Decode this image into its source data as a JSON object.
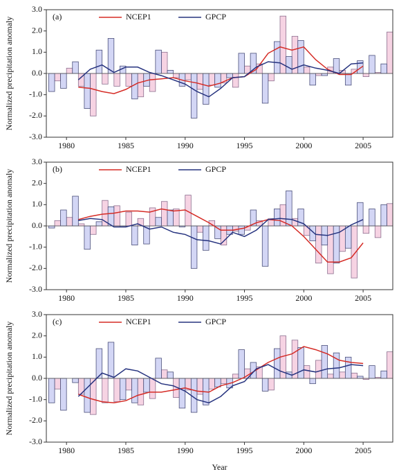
{
  "chart_data": [
    {
      "type": "bar",
      "label": "(a)",
      "ylabel": "Normalized precipitation anomaly",
      "x": [
        1979,
        1980,
        1981,
        1982,
        1983,
        1984,
        1985,
        1986,
        1987,
        1988,
        1989,
        1990,
        1991,
        1992,
        1993,
        1994,
        1995,
        1996,
        1997,
        1998,
        1999,
        2000,
        2001,
        2002,
        2003,
        2004,
        2005,
        2006,
        2007
      ],
      "xlim": [
        1978.3,
        2007.5
      ],
      "xticks": [
        1980,
        1985,
        1990,
        1995,
        2000,
        2005
      ],
      "ylim": [
        -3,
        3
      ],
      "yticks": [
        {
          "value": 3,
          "label": "3.0"
        },
        {
          "value": 2,
          "label": "2.0"
        },
        {
          "value": 1,
          "label": "1.0"
        },
        {
          "value": 0,
          "label": "0.0"
        },
        {
          "value": -1,
          "label": "-1.0"
        },
        {
          "value": -2,
          "label": "-2.0"
        },
        {
          "value": -3,
          "label": "-3.0"
        }
      ],
      "series": [
        {
          "name": "NCEP1",
          "color": "#f6d3e3",
          "edge": "#8c6f8f",
          "line_color": "#d52b25",
          "values": [
            -0.35,
            0.25,
            -0.6,
            -2.0,
            -0.5,
            -0.6,
            -0.6,
            -1.1,
            -0.85,
            1.0,
            -0.2,
            -0.3,
            -0.75,
            -0.55,
            -0.45,
            -0.65,
            0.35,
            0.45,
            -0.35,
            2.7,
            1.75,
            0.3,
            -0.1,
            0.3,
            0.15,
            0.2,
            -0.15,
            0.05,
            1.95
          ],
          "smooth": [
            null,
            null,
            -0.65,
            -0.7,
            -0.85,
            -0.95,
            -0.75,
            -0.45,
            -0.3,
            -0.25,
            -0.2,
            -0.35,
            -0.45,
            -0.6,
            -0.45,
            -0.2,
            -0.15,
            0.2,
            0.95,
            1.25,
            1.1,
            1.25,
            0.65,
            0.2,
            -0.05,
            -0.05,
            0.35,
            null,
            null
          ]
        },
        {
          "name": "GPCP",
          "color": "#d3d6f5",
          "edge": "#4a4f7a",
          "line_color": "#26337f",
          "values": [
            -0.85,
            -0.7,
            0.55,
            -1.65,
            1.1,
            1.65,
            0.35,
            -1.2,
            -0.6,
            1.1,
            0.15,
            -0.6,
            -2.1,
            -1.45,
            -0.65,
            -0.2,
            0.95,
            0.95,
            -1.4,
            1.5,
            0.8,
            1.55,
            -0.55,
            -0.1,
            0.7,
            -0.55,
            0.6,
            0.85,
            0.45
          ],
          "smooth": [
            null,
            null,
            -0.3,
            0.2,
            0.4,
            0.05,
            0.3,
            0.3,
            0.05,
            -0.1,
            -0.3,
            -0.5,
            -0.85,
            -1.1,
            -0.7,
            -0.2,
            -0.15,
            0.3,
            0.55,
            0.5,
            0.2,
            0.4,
            0.25,
            0.15,
            0.0,
            0.45,
            0.5,
            null,
            null
          ]
        }
      ]
    },
    {
      "type": "bar",
      "label": "(b)",
      "ylabel": "Normalized precipitation anomaly",
      "x": [
        1979,
        1980,
        1981,
        1982,
        1983,
        1984,
        1985,
        1986,
        1987,
        1988,
        1989,
        1990,
        1991,
        1992,
        1993,
        1994,
        1995,
        1996,
        1997,
        1998,
        1999,
        2000,
        2001,
        2002,
        2003,
        2004,
        2005,
        2006,
        2007
      ],
      "xlim": [
        1978.3,
        2007.5
      ],
      "xticks": [
        1980,
        1985,
        1990,
        1995,
        2000,
        2005
      ],
      "ylim": [
        -3,
        3
      ],
      "yticks": [
        {
          "value": 3,
          "label": "3.0"
        },
        {
          "value": 2,
          "label": "2.0"
        },
        {
          "value": 1,
          "label": "1.0"
        },
        {
          "value": 0,
          "label": "0.0"
        },
        {
          "value": -1,
          "label": "-1.0"
        },
        {
          "value": -2,
          "label": "-2.0"
        },
        {
          "value": -3,
          "label": "-3.0"
        }
      ],
      "series": [
        {
          "name": "NCEP1",
          "color": "#f6d3e3",
          "edge": "#8c6f8f",
          "line_color": "#d52b25",
          "values": [
            0.25,
            0.4,
            0.1,
            -0.4,
            1.2,
            0.95,
            0.65,
            0.35,
            0.85,
            1.15,
            0.8,
            1.45,
            -0.3,
            0.25,
            -0.9,
            -0.25,
            -0.2,
            0.25,
            0.35,
            1.0,
            0.35,
            -0.45,
            -1.75,
            -2.25,
            -1.2,
            -2.45,
            -0.35,
            -0.55,
            1.05
          ],
          "smooth": [
            null,
            null,
            0.3,
            0.45,
            0.55,
            0.6,
            0.7,
            0.7,
            0.65,
            0.8,
            0.7,
            0.75,
            0.45,
            0.15,
            -0.2,
            -0.2,
            -0.1,
            0.15,
            0.3,
            0.25,
            0.0,
            -0.5,
            -1.1,
            -1.7,
            -1.7,
            -1.5,
            -0.8,
            null,
            null
          ]
        },
        {
          "name": "GPCP",
          "color": "#d3d6f5",
          "edge": "#4a4f7a",
          "line_color": "#26337f",
          "values": [
            -0.1,
            0.75,
            1.4,
            -1.1,
            0.2,
            0.9,
            -0.05,
            -0.9,
            -0.85,
            0.4,
            0.75,
            -0.05,
            -2.0,
            -1.15,
            -0.6,
            -0.4,
            -0.4,
            0.75,
            -1.9,
            0.8,
            1.65,
            0.8,
            -0.7,
            -0.9,
            -1.75,
            -1.05,
            1.1,
            0.8,
            1.0
          ],
          "smooth": [
            null,
            null,
            0.25,
            0.35,
            0.3,
            -0.05,
            -0.05,
            0.1,
            -0.15,
            -0.05,
            -0.3,
            -0.4,
            -0.65,
            -0.7,
            -0.85,
            -0.3,
            -0.5,
            -0.2,
            0.3,
            0.35,
            0.3,
            0.1,
            -0.4,
            -0.45,
            -0.3,
            0.05,
            0.3,
            null,
            null
          ]
        }
      ]
    },
    {
      "type": "bar",
      "label": "(c)",
      "ylabel": "Normalized precipitation anomaly",
      "xlabel": "Year",
      "x": [
        1979,
        1980,
        1981,
        1982,
        1983,
        1984,
        1985,
        1986,
        1987,
        1988,
        1989,
        1990,
        1991,
        1992,
        1993,
        1994,
        1995,
        1996,
        1997,
        1998,
        1999,
        2000,
        2001,
        2002,
        2003,
        2004,
        2005,
        2006,
        2007
      ],
      "xlim": [
        1978.3,
        2007.5
      ],
      "xticks": [
        1980,
        1985,
        1990,
        1995,
        2000,
        2005
      ],
      "ylim": [
        -3,
        3
      ],
      "yticks": [
        {
          "value": 3,
          "label": "3.0"
        },
        {
          "value": 2,
          "label": "2.0"
        },
        {
          "value": 1,
          "label": "1.0"
        },
        {
          "value": 0,
          "label": "0.0"
        },
        {
          "value": -1,
          "label": "-1.0"
        },
        {
          "value": -2,
          "label": "-2.0"
        },
        {
          "value": -3,
          "label": "-3.0"
        }
      ],
      "series": [
        {
          "name": "NCEP1",
          "color": "#f6d3e3",
          "edge": "#8c6f8f",
          "line_color": "#d52b25",
          "values": [
            -0.5,
            0.0,
            -0.75,
            -1.7,
            -1.15,
            -1.1,
            -0.55,
            -1.25,
            -0.95,
            0.4,
            -0.9,
            -0.55,
            -0.75,
            -0.5,
            -0.25,
            0.2,
            0.45,
            0.55,
            -0.55,
            2.0,
            1.8,
            0.6,
            0.85,
            0.2,
            0.3,
            0.25,
            -0.05,
            0.05,
            1.25
          ],
          "smooth": [
            null,
            null,
            -0.75,
            -0.95,
            -1.1,
            -1.15,
            -1.05,
            -0.8,
            -0.65,
            -0.65,
            -0.55,
            -0.45,
            -0.6,
            -0.65,
            -0.35,
            -0.2,
            0.05,
            0.4,
            0.75,
            1.0,
            1.15,
            1.5,
            1.35,
            1.15,
            0.85,
            0.75,
            0.7,
            null,
            null
          ]
        },
        {
          "name": "GPCP",
          "color": "#d3d6f5",
          "edge": "#4a4f7a",
          "line_color": "#26337f",
          "values": [
            -1.15,
            -1.5,
            -0.2,
            -1.6,
            1.4,
            1.7,
            -1.0,
            -1.15,
            -0.65,
            0.95,
            0.3,
            -1.4,
            -1.6,
            -1.25,
            -0.4,
            -0.45,
            1.35,
            0.75,
            -0.6,
            1.4,
            0.3,
            1.45,
            -0.25,
            1.55,
            1.2,
            1.0,
            0.1,
            0.6,
            0.35
          ],
          "smooth": [
            null,
            null,
            -0.85,
            -0.3,
            0.25,
            0.05,
            0.45,
            0.35,
            0.05,
            -0.25,
            -0.35,
            -0.6,
            -1.0,
            -1.15,
            -0.85,
            -0.35,
            -0.15,
            0.45,
            0.65,
            0.35,
            0.15,
            0.4,
            0.3,
            0.45,
            0.5,
            0.65,
            0.6,
            null,
            null
          ]
        }
      ]
    }
  ]
}
